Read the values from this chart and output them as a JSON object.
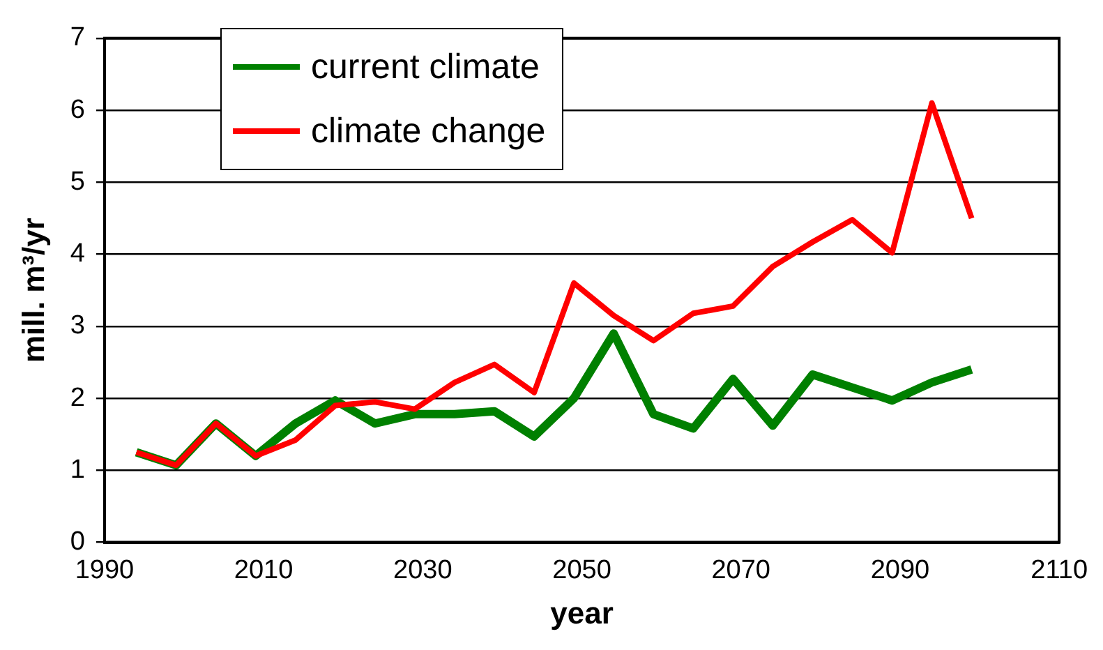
{
  "chart_data": {
    "type": "line",
    "xlabel": "year",
    "ylabel": "mill. m³/yr",
    "x": [
      1994,
      1999,
      2004,
      2009,
      2014,
      2019,
      2024,
      2029,
      2034,
      2039,
      2044,
      2049,
      2054,
      2059,
      2064,
      2069,
      2074,
      2079,
      2084,
      2089,
      2094,
      2099
    ],
    "series": [
      {
        "name": "current climate",
        "color": "#008000",
        "values": [
          1.25,
          1.07,
          1.65,
          1.2,
          1.65,
          1.97,
          1.65,
          1.78,
          1.78,
          1.82,
          1.47,
          2.0,
          2.9,
          1.78,
          1.58,
          2.27,
          1.62,
          2.33,
          2.15,
          1.97,
          2.22,
          2.4
        ]
      },
      {
        "name": "climate change",
        "color": "#ff0000",
        "values": [
          1.25,
          1.07,
          1.65,
          1.2,
          1.42,
          1.9,
          1.95,
          1.85,
          2.22,
          2.47,
          2.08,
          3.6,
          3.15,
          2.8,
          3.18,
          3.28,
          3.83,
          4.17,
          4.48,
          4.02,
          6.1,
          4.5
        ]
      }
    ],
    "xlim": [
      1990,
      2110
    ],
    "xticks": [
      1990,
      2010,
      2030,
      2050,
      2070,
      2090,
      2110
    ],
    "ylim": [
      0,
      7
    ],
    "yticks": [
      0,
      1,
      2,
      3,
      4,
      5,
      6,
      7
    ],
    "grid": "y",
    "legend": "top left",
    "marker": "none",
    "line_style": "solid"
  }
}
